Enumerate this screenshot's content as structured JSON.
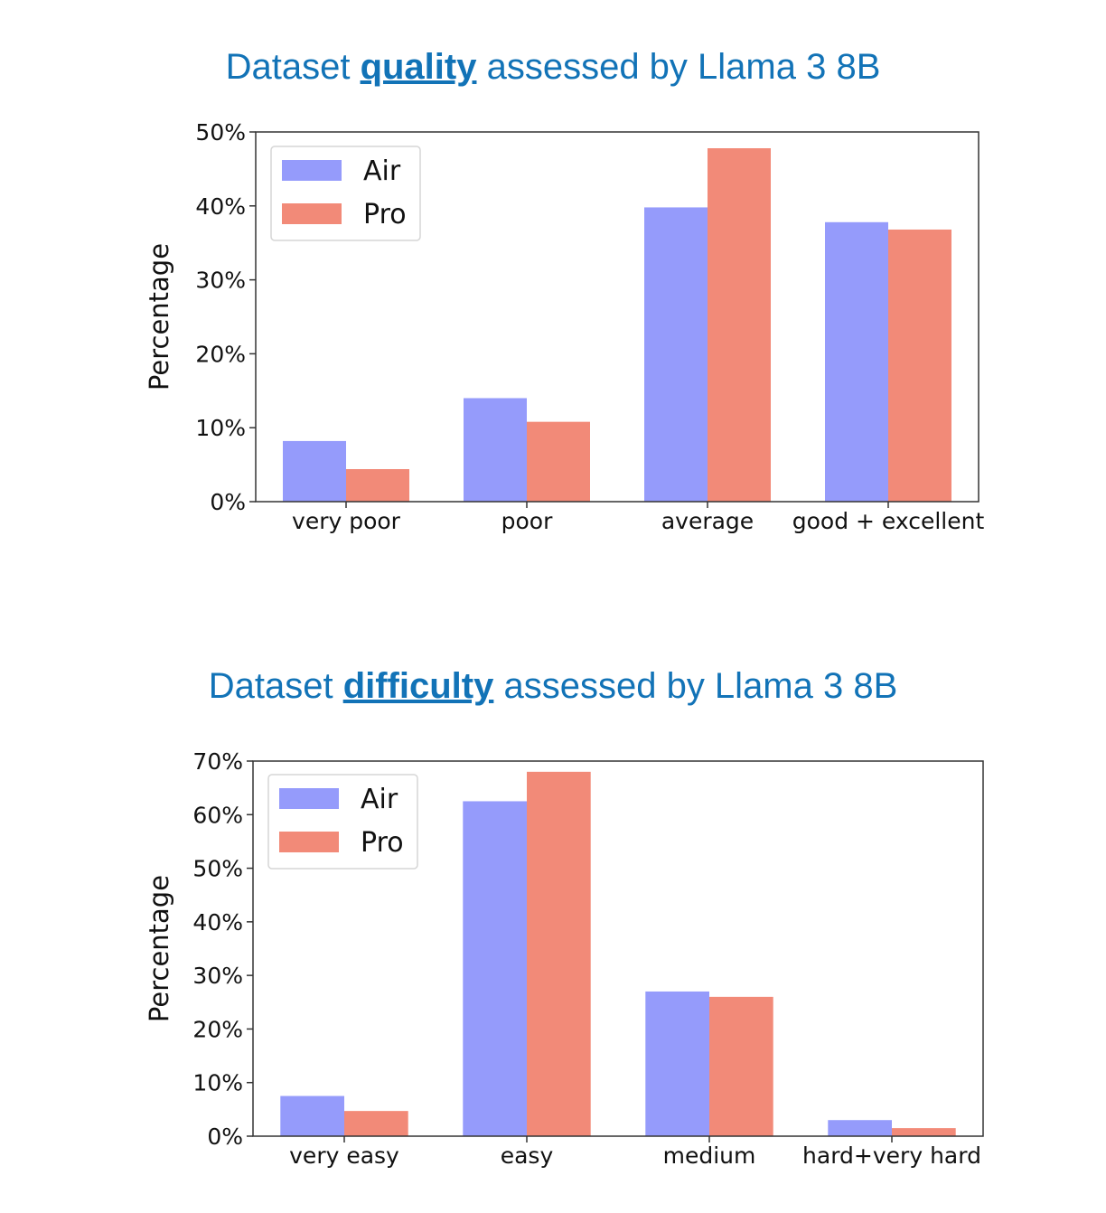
{
  "chart_data": [
    {
      "type": "bar",
      "title": {
        "prefix": "Dataset ",
        "keyword": "quality",
        "suffix": " assessed by Llama 3 8B"
      },
      "ylabel": "Percentage",
      "xlabel": "",
      "categories": [
        "very poor",
        "poor",
        "average",
        "good + excellent"
      ],
      "series": [
        {
          "name": "Air",
          "values": [
            8.2,
            14.0,
            39.8,
            37.8
          ]
        },
        {
          "name": "Pro",
          "values": [
            4.4,
            10.8,
            47.8,
            36.8
          ]
        }
      ],
      "ylim": [
        0,
        50
      ],
      "yticks": [
        0,
        10,
        20,
        30,
        40,
        50
      ],
      "ytick_labels": [
        "0%",
        "10%",
        "20%",
        "30%",
        "40%",
        "50%"
      ],
      "legend_position": "top-left",
      "grid": false
    },
    {
      "type": "bar",
      "title": {
        "prefix": "Dataset ",
        "keyword": "difficulty",
        "suffix": " assessed by Llama 3 8B"
      },
      "ylabel": "Percentage",
      "xlabel": "",
      "categories": [
        "very easy",
        "easy",
        "medium",
        "hard+very hard"
      ],
      "series": [
        {
          "name": "Air",
          "values": [
            7.5,
            62.5,
            27.0,
            3.0
          ]
        },
        {
          "name": "Pro",
          "values": [
            4.7,
            68.0,
            26.0,
            1.5
          ]
        }
      ],
      "ylim": [
        0,
        70
      ],
      "yticks": [
        0,
        10,
        20,
        30,
        40,
        50,
        60,
        70
      ],
      "ytick_labels": [
        "0%",
        "10%",
        "20%",
        "30%",
        "40%",
        "50%",
        "60%",
        "70%"
      ],
      "legend_position": "top-left",
      "grid": false
    }
  ],
  "colors": {
    "Air": "#959bfb",
    "Pro": "#f28a78",
    "title": "#1273b7"
  }
}
